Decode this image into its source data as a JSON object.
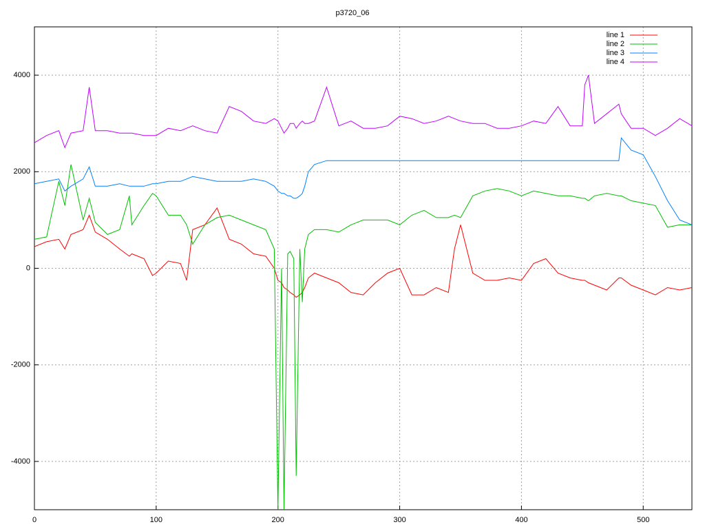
{
  "chart_data": {
    "type": "line",
    "title": "p3720_06",
    "x": [
      0,
      10,
      20,
      25,
      30,
      40,
      45,
      50,
      60,
      70,
      78,
      80,
      90,
      97,
      100,
      110,
      120,
      125,
      130,
      140,
      150,
      160,
      170,
      180,
      190,
      197,
      200,
      203,
      205,
      208,
      210,
      213,
      215,
      218,
      220,
      222,
      225,
      230,
      240,
      250,
      260,
      270,
      280,
      290,
      300,
      310,
      320,
      330,
      340,
      345,
      350,
      360,
      370,
      380,
      390,
      400,
      410,
      420,
      430,
      440,
      450,
      452,
      455,
      460,
      470,
      480,
      482,
      490,
      500,
      510,
      520,
      530,
      540
    ],
    "series": [
      {
        "name": "line 1",
        "color": "#ff0000",
        "values": [
          450,
          550,
          600,
          400,
          700,
          800,
          1100,
          750,
          600,
          400,
          250,
          300,
          200,
          -150,
          -100,
          150,
          100,
          -250,
          800,
          900,
          1250,
          600,
          500,
          300,
          250,
          0,
          -250,
          -300,
          -400,
          -450,
          -500,
          -550,
          -600,
          -550,
          -500,
          -400,
          -200,
          -100,
          -200,
          -300,
          -500,
          -550,
          -300,
          -100,
          0,
          -550,
          -550,
          -400,
          -500,
          400,
          900,
          -100,
          -250,
          -250,
          -200,
          -250,
          100,
          200,
          -100,
          -200,
          -250,
          -250,
          -300,
          -350,
          -450,
          -200,
          -200,
          -350,
          -450,
          -550,
          -400,
          -450,
          -400
        ]
      },
      {
        "name": "line 2",
        "color": "#00c000",
        "values": [
          600,
          650,
          1800,
          1300,
          2150,
          1000,
          1450,
          950,
          700,
          800,
          1500,
          900,
          1300,
          1550,
          1500,
          1100,
          1100,
          900,
          500,
          900,
          1050,
          1100,
          1000,
          900,
          800,
          400,
          -5000,
          0,
          -5000,
          300,
          350,
          200,
          -4300,
          400,
          -700,
          400,
          700,
          800,
          800,
          750,
          900,
          1000,
          1000,
          1000,
          900,
          1100,
          1200,
          1050,
          1050,
          1100,
          1050,
          1500,
          1600,
          1650,
          1600,
          1500,
          1600,
          1550,
          1500,
          1500,
          1450,
          1450,
          1400,
          1500,
          1550,
          1500,
          1500,
          1400,
          1350,
          1300,
          850,
          900,
          900
        ]
      },
      {
        "name": "line 3",
        "color": "#0080ff",
        "values": [
          1750,
          1800,
          1850,
          1600,
          1700,
          1850,
          2100,
          1700,
          1700,
          1750,
          1700,
          1700,
          1700,
          1750,
          1750,
          1800,
          1800,
          1850,
          1900,
          1850,
          1800,
          1800,
          1800,
          1850,
          1800,
          1700,
          1600,
          1550,
          1550,
          1500,
          1500,
          1450,
          1450,
          1500,
          1550,
          1700,
          2000,
          2150,
          2230,
          2230,
          2230,
          2230,
          2230,
          2230,
          2230,
          2230,
          2230,
          2230,
          2230,
          2230,
          2230,
          2230,
          2230,
          2230,
          2230,
          2230,
          2230,
          2230,
          2230,
          2230,
          2230,
          2230,
          2230,
          2230,
          2230,
          2230,
          2700,
          2450,
          2350,
          1900,
          1400,
          1000,
          900
        ]
      },
      {
        "name": "line 4",
        "color": "#c000ff",
        "values": [
          2600,
          2750,
          2850,
          2500,
          2800,
          2850,
          3750,
          2850,
          2850,
          2800,
          2800,
          2800,
          2750,
          2750,
          2750,
          2900,
          2850,
          2900,
          2950,
          2850,
          2800,
          3350,
          3250,
          3050,
          3000,
          3100,
          3050,
          2900,
          2800,
          2900,
          3000,
          3000,
          2900,
          3000,
          3050,
          3000,
          3000,
          3050,
          3750,
          2950,
          3050,
          2900,
          2900,
          2950,
          3150,
          3100,
          3000,
          3050,
          3150,
          3100,
          3050,
          3000,
          3000,
          2900,
          2900,
          2950,
          3050,
          3000,
          3350,
          2950,
          2950,
          3800,
          4000,
          3000,
          3200,
          3400,
          3200,
          2900,
          2900,
          2750,
          2900,
          3100,
          2950
        ]
      }
    ],
    "xlim": [
      0,
      540
    ],
    "xticks": [
      0,
      100,
      200,
      300,
      400,
      500
    ],
    "ylim": [
      -5000,
      5000
    ],
    "yticks": [
      -4000,
      -2000,
      0,
      2000,
      4000
    ],
    "grid": true,
    "legend": "top-right"
  }
}
